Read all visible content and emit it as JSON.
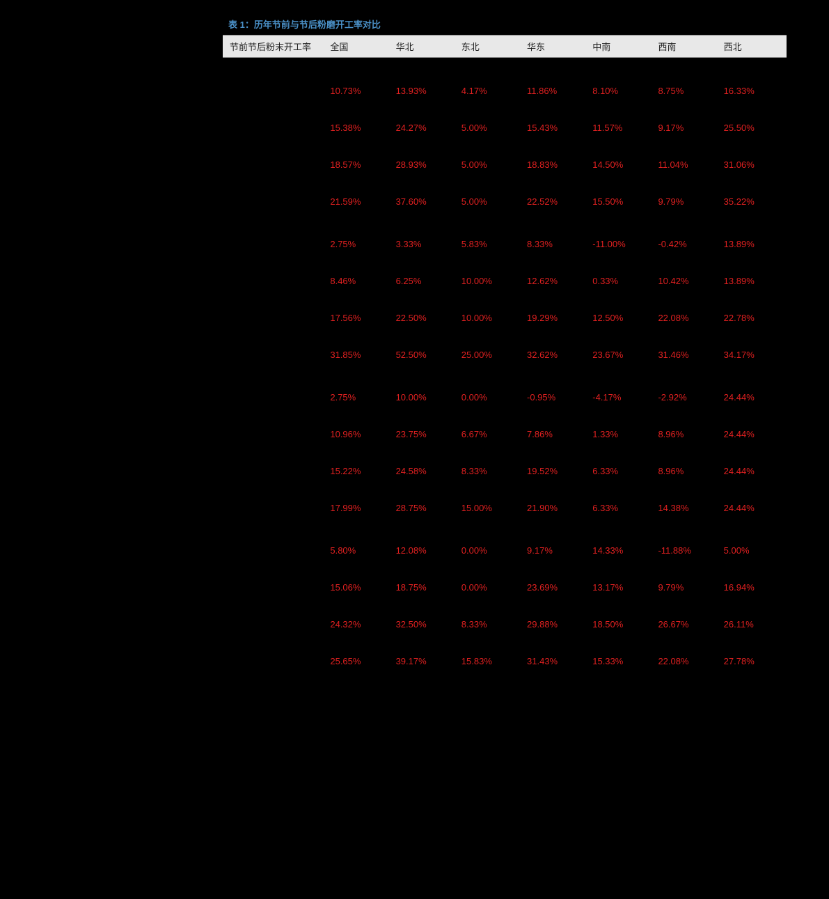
{
  "title": "表 1：历年节前与节后粉磨开工率对比",
  "title_color": "#4a90c7",
  "background_color": "#000000",
  "header_bg": "#e8e8e8",
  "red_text_color": "#e02020",
  "label_header": "节前节后粉末开工率",
  "regions": [
    "全国",
    "华北",
    "东北",
    "华东",
    "中南",
    "西南",
    "西北"
  ],
  "fontsize": 13,
  "col_widths": {
    "label": 150,
    "region": 94
  },
  "groups": [
    {
      "spacer_before": true,
      "rows": [
        {
          "values": [
            "10.73%",
            "13.93%",
            "4.17%",
            "11.86%",
            "8.10%",
            "8.75%",
            "16.33%"
          ]
        },
        {
          "values": [
            "15.38%",
            "24.27%",
            "5.00%",
            "15.43%",
            "11.57%",
            "9.17%",
            "25.50%"
          ]
        },
        {
          "values": [
            "18.57%",
            "28.93%",
            "5.00%",
            "18.83%",
            "14.50%",
            "11.04%",
            "31.06%"
          ]
        },
        {
          "values": [
            "21.59%",
            "37.60%",
            "5.00%",
            "22.52%",
            "15.50%",
            "9.79%",
            "35.22%"
          ]
        }
      ]
    },
    {
      "spacer_before": true,
      "rows": [
        {
          "values": [
            "2.75%",
            "3.33%",
            "5.83%",
            "8.33%",
            "-11.00%",
            "-0.42%",
            "13.89%"
          ]
        },
        {
          "values": [
            "8.46%",
            "6.25%",
            "10.00%",
            "12.62%",
            "0.33%",
            "10.42%",
            "13.89%"
          ]
        },
        {
          "values": [
            "17.56%",
            "22.50%",
            "10.00%",
            "19.29%",
            "12.50%",
            "22.08%",
            "22.78%"
          ]
        },
        {
          "values": [
            "31.85%",
            "52.50%",
            "25.00%",
            "32.62%",
            "23.67%",
            "31.46%",
            "34.17%"
          ]
        }
      ]
    },
    {
      "spacer_before": true,
      "rows": [
        {
          "values": [
            "2.75%",
            "10.00%",
            "0.00%",
            "-0.95%",
            "-4.17%",
            "-2.92%",
            "24.44%"
          ]
        },
        {
          "values": [
            "10.96%",
            "23.75%",
            "6.67%",
            "7.86%",
            "1.33%",
            "8.96%",
            "24.44%"
          ]
        },
        {
          "values": [
            "15.22%",
            "24.58%",
            "8.33%",
            "19.52%",
            "6.33%",
            "8.96%",
            "24.44%"
          ]
        },
        {
          "values": [
            "17.99%",
            "28.75%",
            "15.00%",
            "21.90%",
            "6.33%",
            "14.38%",
            "24.44%"
          ]
        }
      ]
    },
    {
      "spacer_before": true,
      "rows": [
        {
          "values": [
            "5.80%",
            "12.08%",
            "0.00%",
            "9.17%",
            "14.33%",
            "-11.88%",
            "5.00%"
          ]
        },
        {
          "values": [
            "15.06%",
            "18.75%",
            "0.00%",
            "23.69%",
            "13.17%",
            "9.79%",
            "16.94%"
          ]
        },
        {
          "values": [
            "24.32%",
            "32.50%",
            "8.33%",
            "29.88%",
            "18.50%",
            "26.67%",
            "26.11%"
          ]
        },
        {
          "values": [
            "25.65%",
            "39.17%",
            "15.83%",
            "31.43%",
            "15.33%",
            "22.08%",
            "27.78%"
          ]
        }
      ]
    }
  ]
}
